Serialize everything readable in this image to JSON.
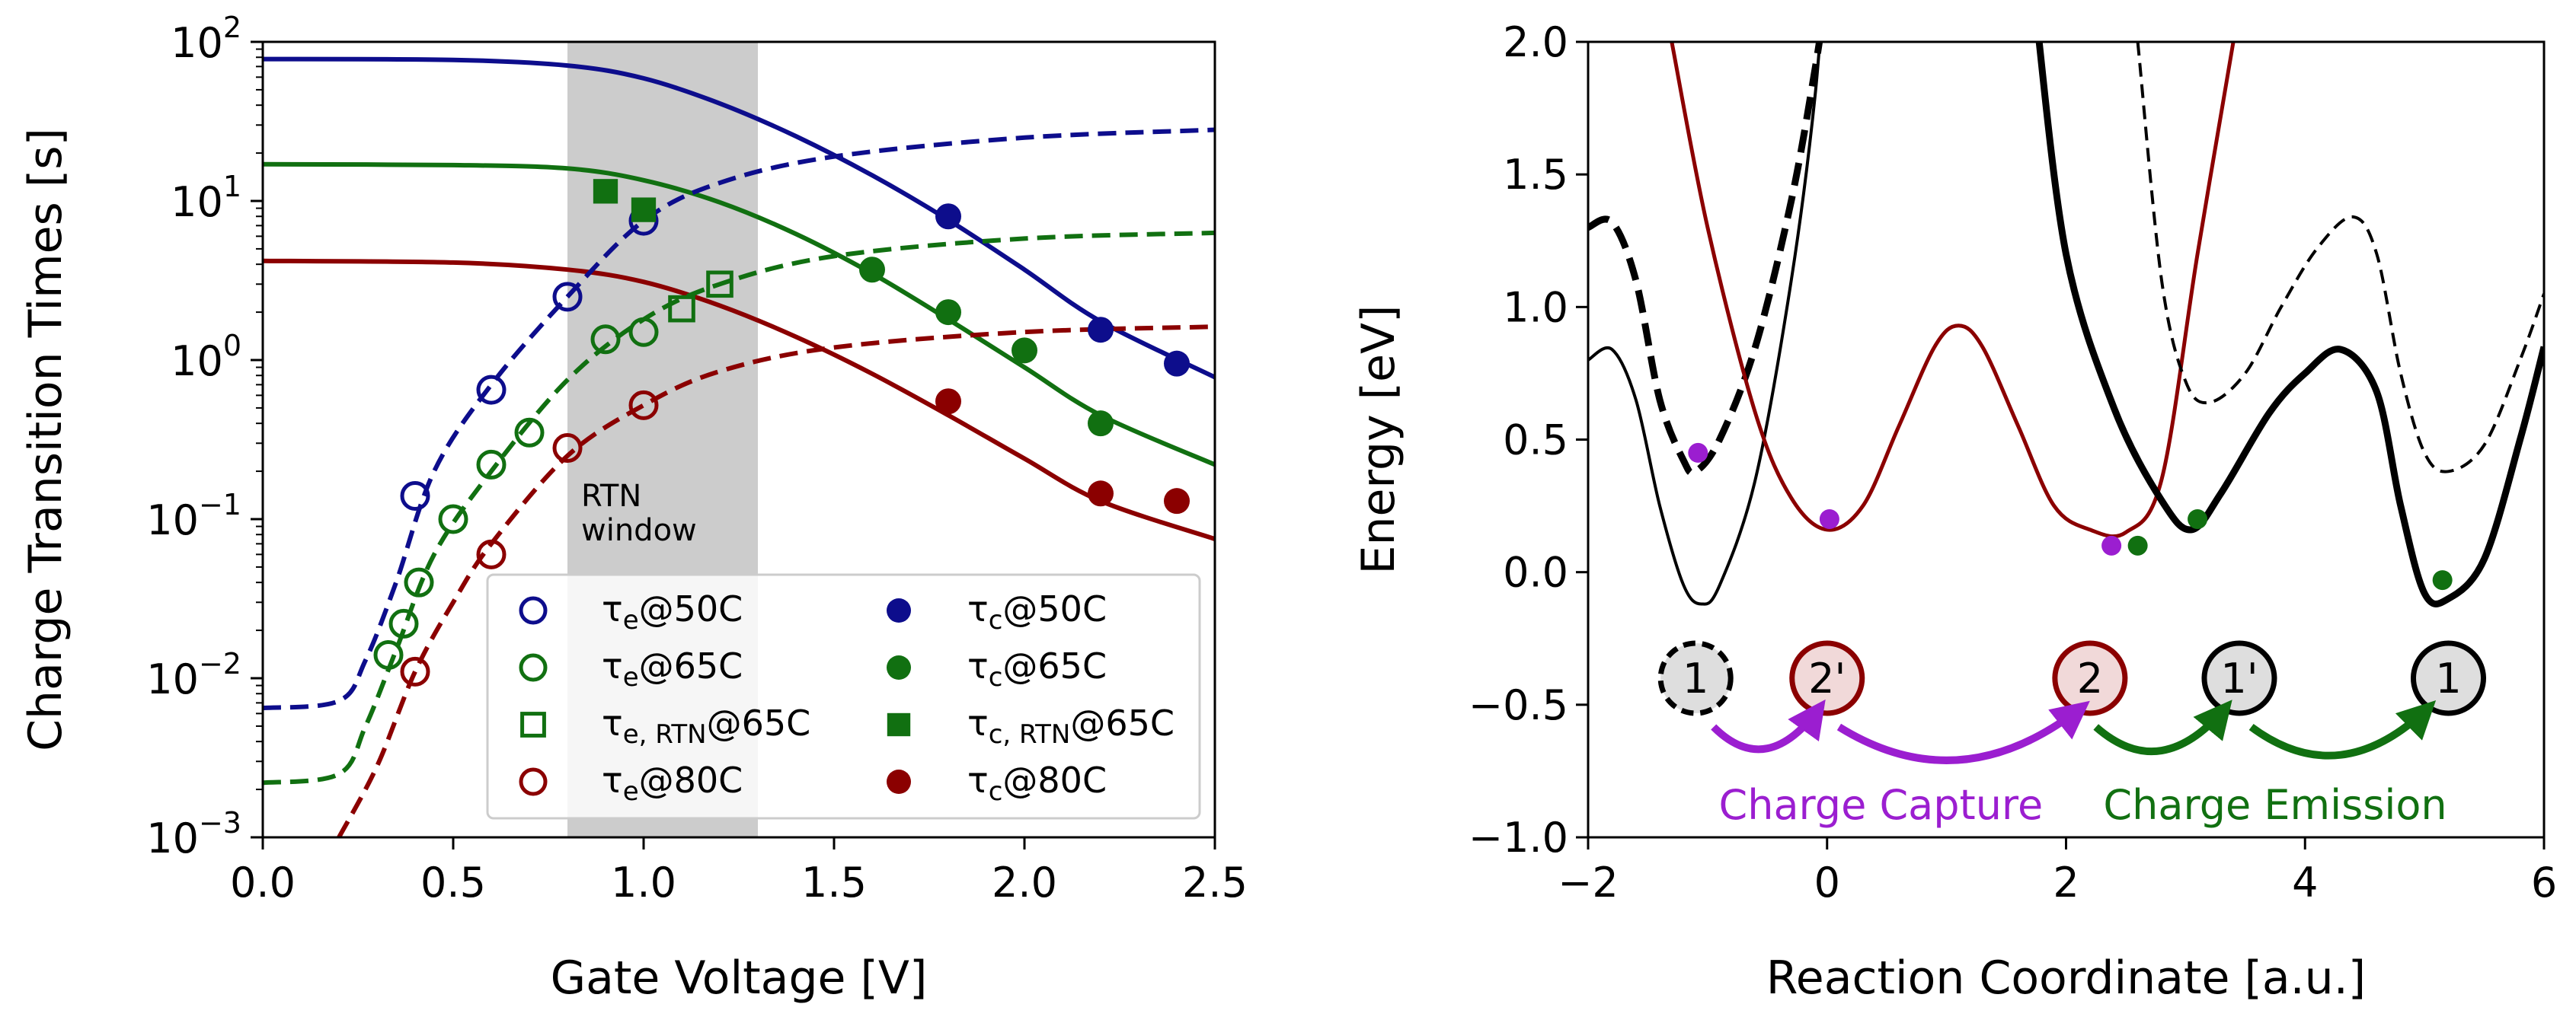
{
  "chart_data": [
    {
      "type": "line",
      "xlabel": "Gate Voltage  [V]",
      "ylabel": "Charge Transition Times  [s]",
      "xlim": [
        0.0,
        2.5
      ],
      "ylim_log10": [
        -3,
        2
      ],
      "yscale": "log",
      "xticks": [
        "0.0",
        "0.5",
        "1.0",
        "1.5",
        "2.0",
        "2.5"
      ],
      "xtick_values": [
        0.0,
        0.5,
        1.0,
        1.5,
        2.0,
        2.5
      ],
      "yticks": [
        {
          "base": "10",
          "exp": "2",
          "log10": 2
        },
        {
          "base": "10",
          "exp": "1",
          "log10": 1
        },
        {
          "base": "10",
          "exp": "0",
          "log10": 0
        },
        {
          "base": "10",
          "exp": "−1",
          "log10": -1
        },
        {
          "base": "10",
          "exp": "−2",
          "log10": -2
        },
        {
          "base": "10",
          "exp": "−3",
          "log10": -3
        }
      ],
      "grid": false,
      "legend_position": "lower-right",
      "shaded_region": {
        "x": [
          0.8,
          1.3
        ],
        "label_line1": "RTN",
        "label_line2": "window",
        "color": "#cccccc"
      },
      "colors": {
        "50C": "#0d0d8c",
        "65C": "#117011",
        "80C": "#8b0000"
      },
      "legend": [
        {
          "key": "te50",
          "sym": "τ",
          "sub": "e",
          "suffix": "@50C",
          "marker": "open-circle",
          "color": "#0d0d8c"
        },
        {
          "key": "te65",
          "sym": "τ",
          "sub": "e",
          "suffix": "@65C",
          "marker": "open-circle",
          "color": "#117011"
        },
        {
          "key": "teRTN65",
          "sym": "τ",
          "sub": "e, RTN",
          "suffix": "@65C",
          "marker": "open-square",
          "color": "#117011"
        },
        {
          "key": "te80",
          "sym": "τ",
          "sub": "e",
          "suffix": "@80C",
          "marker": "open-circle",
          "color": "#8b0000"
        },
        {
          "key": "tc50",
          "sym": "τ",
          "sub": "c",
          "suffix": "@50C",
          "marker": "filled-circle",
          "color": "#0d0d8c"
        },
        {
          "key": "tc65",
          "sym": "τ",
          "sub": "c",
          "suffix": "@65C",
          "marker": "filled-circle",
          "color": "#117011"
        },
        {
          "key": "tcRTN65",
          "sym": "τ",
          "sub": "c, RTN",
          "suffix": "@65C",
          "marker": "filled-square",
          "color": "#117011"
        },
        {
          "key": "tc80",
          "sym": "τ",
          "sub": "c",
          "suffix": "@80C",
          "marker": "filled-circle",
          "color": "#8b0000"
        }
      ],
      "series": [
        {
          "key": "te50",
          "marker": "open-circle",
          "color": "#0d0d8c",
          "x": [
            0.4,
            0.6,
            0.8,
            1.0
          ],
          "y": [
            0.14,
            0.65,
            2.5,
            7.5
          ]
        },
        {
          "key": "te65",
          "marker": "open-circle",
          "color": "#117011",
          "x": [
            0.33,
            0.37,
            0.41,
            0.5,
            0.6,
            0.7,
            0.9,
            1.0
          ],
          "y": [
            0.014,
            0.022,
            0.04,
            0.1,
            0.22,
            0.35,
            1.35,
            1.5
          ]
        },
        {
          "key": "teRTN65",
          "marker": "open-square",
          "color": "#117011",
          "x": [
            1.1,
            1.2
          ],
          "y": [
            2.1,
            3.0
          ]
        },
        {
          "key": "te80",
          "marker": "open-circle",
          "color": "#8b0000",
          "x": [
            0.4,
            0.6,
            0.8,
            1.0
          ],
          "y": [
            0.011,
            0.06,
            0.28,
            0.52
          ]
        },
        {
          "key": "tc50",
          "marker": "filled-circle",
          "color": "#0d0d8c",
          "x": [
            1.8,
            2.2,
            2.4
          ],
          "y": [
            8.0,
            1.55,
            0.95
          ]
        },
        {
          "key": "tc65",
          "marker": "filled-circle",
          "color": "#117011",
          "x": [
            1.6,
            1.8,
            2.0,
            2.2
          ],
          "y": [
            3.7,
            2.0,
            1.15,
            0.4
          ]
        },
        {
          "key": "tcRTN65",
          "marker": "filled-square",
          "color": "#117011",
          "x": [
            0.9,
            1.0
          ],
          "y": [
            11.5,
            8.8
          ]
        },
        {
          "key": "tc80",
          "marker": "filled-circle",
          "color": "#8b0000",
          "x": [
            1.8,
            2.2,
            2.4
          ],
          "y": [
            0.55,
            0.145,
            0.13
          ]
        }
      ],
      "fit_curves": [
        {
          "key": "fit-tc50",
          "style": "solid",
          "color": "#0d0d8c",
          "x": [
            0.0,
            0.5,
            0.8,
            1.0,
            1.2,
            1.4,
            1.6,
            1.8,
            2.0,
            2.2,
            2.5
          ],
          "y": [
            78,
            77,
            71,
            59,
            41,
            25.5,
            14.5,
            7.6,
            3.7,
            1.75,
            0.78
          ]
        },
        {
          "key": "fit-tc65",
          "style": "solid",
          "color": "#117011",
          "x": [
            0.0,
            0.5,
            0.8,
            1.0,
            1.2,
            1.4,
            1.6,
            1.8,
            2.0,
            2.2,
            2.5
          ],
          "y": [
            17,
            16.8,
            16,
            13.5,
            9.8,
            6.2,
            3.5,
            1.8,
            0.9,
            0.45,
            0.22
          ]
        },
        {
          "key": "fit-tc80",
          "style": "solid",
          "color": "#8b0000",
          "x": [
            0.0,
            0.5,
            0.8,
            1.0,
            1.2,
            1.4,
            1.6,
            1.8,
            2.0,
            2.2,
            2.5
          ],
          "y": [
            4.2,
            4.1,
            3.7,
            3.1,
            2.2,
            1.4,
            0.82,
            0.45,
            0.24,
            0.13,
            0.075
          ]
        },
        {
          "key": "fit-te50",
          "style": "dashed",
          "color": "#0d0d8c",
          "x": [
            0.0,
            0.2,
            0.27,
            0.35,
            0.45,
            0.6,
            0.8,
            1.0,
            1.2,
            1.5,
            2.0,
            2.5
          ],
          "y": [
            0.0065,
            0.0072,
            0.013,
            0.04,
            0.2,
            0.7,
            2.5,
            7.5,
            13,
            19,
            25,
            28
          ]
        },
        {
          "key": "fit-te65",
          "style": "dashed",
          "color": "#117011",
          "x": [
            0.0,
            0.2,
            0.27,
            0.35,
            0.45,
            0.6,
            0.8,
            1.0,
            1.2,
            1.5,
            2.0,
            2.5
          ],
          "y": [
            0.0022,
            0.0025,
            0.005,
            0.015,
            0.06,
            0.2,
            0.75,
            1.8,
            3.0,
            4.5,
            5.8,
            6.3
          ]
        },
        {
          "key": "fit-te80",
          "style": "dashed",
          "color": "#8b0000",
          "x": [
            0.2,
            0.3,
            0.4,
            0.5,
            0.6,
            0.8,
            1.0,
            1.2,
            1.5,
            2.0,
            2.5
          ],
          "y": [
            0.001,
            0.0028,
            0.011,
            0.03,
            0.07,
            0.25,
            0.52,
            0.85,
            1.2,
            1.5,
            1.62
          ]
        }
      ]
    },
    {
      "type": "line",
      "xlabel": "Reaction Coordinate  [a.u.]",
      "ylabel": "Energy  [eV]",
      "xlim": [
        -2,
        6
      ],
      "ylim": [
        -1.0,
        2.0
      ],
      "xticks": [
        "−2",
        "0",
        "2",
        "4",
        "6"
      ],
      "xtick_values": [
        -2,
        0,
        2,
        4,
        6
      ],
      "yticks": [
        "2.0",
        "1.5",
        "1.0",
        "0.5",
        "0.0",
        "−0.5",
        "−1.0"
      ],
      "ytick_values": [
        2.0,
        1.5,
        1.0,
        0.5,
        0.0,
        -0.5,
        -1.0
      ],
      "grid": false,
      "curves": [
        {
          "key": "state1-thin-solid",
          "style": "solid",
          "width": "thin",
          "color": "#000000",
          "x": [
            -2,
            -1.8,
            -1.6,
            -1.4,
            -1.2,
            -1.05,
            -0.9,
            -0.6,
            -0.3,
            -0.1,
            0.0
          ],
          "y": [
            0.8,
            0.84,
            0.65,
            0.25,
            -0.05,
            -0.12,
            -0.05,
            0.35,
            1.1,
            1.8,
            2.4
          ]
        },
        {
          "key": "state1prime-thick-dashed",
          "style": "dashed",
          "width": "thick",
          "color": "#000000",
          "x": [
            -2,
            -1.8,
            -1.6,
            -1.4,
            -1.2,
            -1.1,
            -0.9,
            -0.6,
            -0.3,
            -0.1,
            0.0
          ],
          "y": [
            1.3,
            1.32,
            1.1,
            0.65,
            0.42,
            0.38,
            0.5,
            0.85,
            1.4,
            1.9,
            2.2
          ]
        },
        {
          "key": "state2prime-red",
          "style": "solid",
          "width": "medium",
          "color": "#8b0000",
          "x": [
            -1.3,
            -1.0,
            -0.6,
            -0.3,
            0.0,
            0.3,
            0.6,
            0.9,
            1.1,
            1.3,
            1.6,
            1.9,
            2.2,
            2.5,
            2.8,
            3.1,
            3.4
          ],
          "y": [
            2.0,
            1.3,
            0.6,
            0.28,
            0.16,
            0.25,
            0.55,
            0.85,
            0.93,
            0.85,
            0.55,
            0.25,
            0.16,
            0.15,
            0.35,
            1.2,
            2.0
          ]
        },
        {
          "key": "state1-thick-solid",
          "style": "solid",
          "width": "thick",
          "color": "#000000",
          "x": [
            1.75,
            2.0,
            2.4,
            2.8,
            3.05,
            3.3,
            3.7,
            4.0,
            4.3,
            4.6,
            4.8,
            5.0,
            5.2,
            5.5,
            5.8,
            6.0
          ],
          "y": [
            2.1,
            1.2,
            0.62,
            0.27,
            0.16,
            0.3,
            0.6,
            0.75,
            0.84,
            0.68,
            0.25,
            -0.08,
            -0.1,
            0.05,
            0.5,
            0.85
          ]
        },
        {
          "key": "state1prime-thin-dashed",
          "style": "dashed",
          "width": "thin",
          "color": "#000000",
          "x": [
            2.6,
            2.8,
            3.0,
            3.2,
            3.5,
            3.8,
            4.1,
            4.4,
            4.6,
            4.8,
            5.0,
            5.2,
            5.5,
            5.8,
            6.0
          ],
          "y": [
            2.0,
            1.1,
            0.72,
            0.64,
            0.75,
            1.0,
            1.22,
            1.34,
            1.2,
            0.75,
            0.45,
            0.38,
            0.48,
            0.8,
            1.05
          ]
        }
      ],
      "points": [
        {
          "color": "#9b1ed0",
          "x": -1.08,
          "y": 0.45
        },
        {
          "color": "#9b1ed0",
          "x": 0.02,
          "y": 0.2
        },
        {
          "color": "#9b1ed0",
          "x": 2.38,
          "y": 0.1
        },
        {
          "color": "#117011",
          "x": 2.6,
          "y": 0.1
        },
        {
          "color": "#117011",
          "x": 3.1,
          "y": 0.2
        },
        {
          "color": "#117011",
          "x": 5.15,
          "y": -0.03
        }
      ],
      "state_badges": [
        {
          "label": "1",
          "x": -1.1,
          "y": -0.4,
          "border": "#000000",
          "style": "dashed"
        },
        {
          "label": "2'",
          "x": 0.0,
          "y": -0.4,
          "border": "#8b0000",
          "style": "solid"
        },
        {
          "label": "2",
          "x": 2.2,
          "y": -0.4,
          "border": "#8b0000",
          "style": "solid"
        },
        {
          "label": "1'",
          "x": 3.45,
          "y": -0.4,
          "border": "#000000",
          "style": "solid"
        },
        {
          "label": "1",
          "x": 5.2,
          "y": -0.4,
          "border": "#000000",
          "style": "solid"
        }
      ],
      "arrows": [
        {
          "color": "#9b1ed0",
          "x_from": -0.95,
          "x_to": -0.05
        },
        {
          "color": "#9b1ed0",
          "x_from": 0.1,
          "x_to": 2.15
        },
        {
          "color": "#117011",
          "x_from": 2.25,
          "x_to": 3.35
        },
        {
          "color": "#117011",
          "x_from": 3.55,
          "x_to": 5.05
        }
      ],
      "annotations": [
        {
          "key": "charge-capture",
          "text": "Charge Capture",
          "color": "#9b1ed0",
          "x": 0.45,
          "y": -0.88
        },
        {
          "key": "charge-emission",
          "text": "Charge Emission",
          "color": "#117011",
          "x": 3.75,
          "y": -0.88
        }
      ]
    }
  ]
}
